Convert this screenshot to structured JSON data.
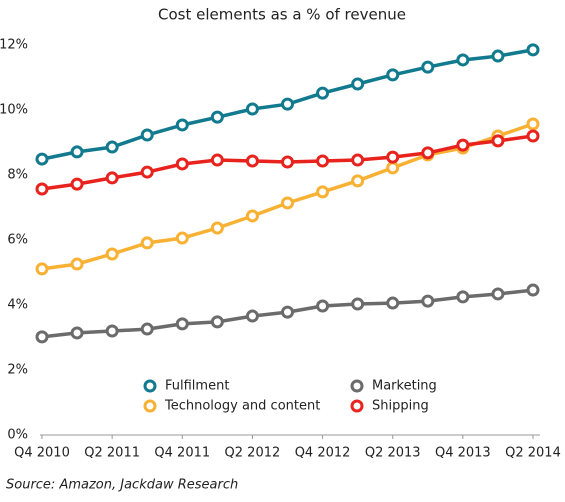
{
  "chart_data": {
    "type": "line",
    "title": "Cost elements as a % of revenue",
    "categories": [
      "Q4 2010",
      null,
      "Q2 2011",
      null,
      "Q4 2011",
      null,
      "Q2 2012",
      null,
      "Q4 2012",
      null,
      "Q2 2013",
      null,
      "Q4 2013",
      null,
      "Q2 2014"
    ],
    "series": [
      {
        "name": "Fulfilment",
        "color": "#117a8f",
        "values": [
          8.49,
          8.71,
          8.86,
          9.23,
          9.54,
          9.78,
          10.03,
          10.18,
          10.52,
          10.8,
          11.08,
          11.32,
          11.54,
          11.66,
          11.85
        ]
      },
      {
        "name": "Technology and content",
        "color": "#f8b133",
        "values": [
          5.11,
          5.26,
          5.57,
          5.91,
          6.06,
          6.37,
          6.74,
          7.14,
          7.48,
          7.82,
          8.22,
          8.62,
          8.83,
          9.2,
          9.57
        ]
      },
      {
        "name": "Marketing",
        "color": "#6b6b6b",
        "values": [
          3.02,
          3.14,
          3.2,
          3.26,
          3.42,
          3.48,
          3.66,
          3.78,
          3.97,
          4.03,
          4.06,
          4.12,
          4.25,
          4.34,
          4.46
        ]
      },
      {
        "name": "Shipping",
        "color": "#e8231e",
        "values": [
          7.57,
          7.72,
          7.91,
          8.09,
          8.34,
          8.46,
          8.43,
          8.4,
          8.43,
          8.46,
          8.55,
          8.68,
          8.92,
          9.05,
          9.2
        ]
      }
    ],
    "ylim": [
      0,
      12
    ],
    "yticks": [
      {
        "value": 0,
        "label": "0%"
      },
      {
        "value": 2,
        "label": "2%"
      },
      {
        "value": 4,
        "label": "4%"
      },
      {
        "value": 6,
        "label": "6%"
      },
      {
        "value": 8,
        "label": "8%"
      },
      {
        "value": 10,
        "label": "10%"
      },
      {
        "value": 12,
        "label": "12%"
      }
    ],
    "grid": false,
    "legend": "bottom",
    "source": "Source: Amazon, Jackdaw Research"
  }
}
